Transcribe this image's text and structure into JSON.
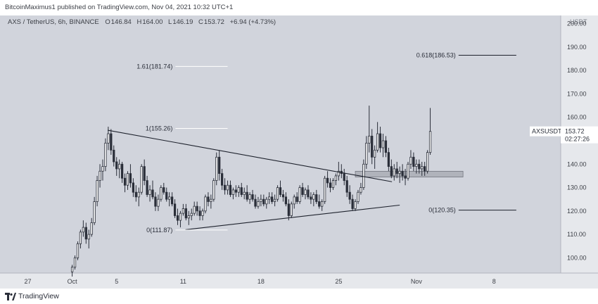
{
  "header": {
    "published_text": "BitcoinMaximus1 published on TradingView.com, Nov 04, 2021 10:32 UTC+1"
  },
  "footer": {
    "brand": "TradingView"
  },
  "colors": {
    "background": "#d1d4dc",
    "candle": "#2a2e39",
    "panel": "#e6e8ec",
    "text": "#3c3f46",
    "price_label_bg": "#ffffff"
  },
  "chart_data": {
    "type": "candlestick",
    "symbol": "AXS / TetherUS, 6h, BINANCE",
    "ohlc": {
      "o_label": "O",
      "o": "146.84",
      "h_label": "H",
      "h": "164.00",
      "l_label": "L",
      "l": "146.19",
      "c_label": "C",
      "c": "153.72",
      "change": "+6.94 (+4.73%)"
    },
    "y_axis": {
      "unit": "USDT",
      "ticks": [
        "200.00",
        "190.00",
        "180.00",
        "170.00",
        "160.00",
        "150.00",
        "140.00",
        "130.00",
        "120.00",
        "110.00",
        "100.00"
      ],
      "tick_values": [
        200,
        190,
        180,
        170,
        160,
        150,
        140,
        130,
        120,
        110,
        100
      ],
      "range": [
        93.5,
        203.5
      ]
    },
    "x_axis": {
      "ticks": [
        "27",
        "Oct",
        "5",
        "11",
        "18",
        "25",
        "Nov",
        "8"
      ],
      "tick_days": [
        -4,
        0,
        4,
        10,
        17,
        24,
        31,
        38
      ],
      "range": [
        -6.5,
        44
      ],
      "day_origin": "Oct"
    },
    "current_price": {
      "symbol": "AXSUSDT",
      "price": "153.72",
      "countdown": "02:27:26",
      "value": 153.72
    },
    "fib_levels": [
      {
        "label": "1.61(181.74)",
        "value": 181.74,
        "day_start": 9.3,
        "day_end": 14.0
      },
      {
        "label": "1(155.26)",
        "value": 155.26,
        "day_start": 9.3,
        "day_end": 14.0
      },
      {
        "label": "0(111.87)",
        "value": 111.87,
        "day_start": 9.3,
        "day_end": 14.0
      },
      {
        "label": "0.618(186.53)",
        "value": 186.53,
        "day_start": 34.8,
        "day_end": 40.0
      },
      {
        "label": "0(120.35)",
        "value": 120.35,
        "day_start": 34.8,
        "day_end": 40.0
      }
    ],
    "trendlines": [
      {
        "from": [
          3.2,
          154.5
        ],
        "to": [
          28.8,
          132.5
        ]
      },
      {
        "from": [
          10.2,
          112.0
        ],
        "to": [
          29.5,
          122.5
        ]
      }
    ],
    "support_zone": {
      "day_start": 25.5,
      "day_end": 35.2,
      "low": 134.5,
      "high": 137.0
    },
    "candles": [
      [
        0,
        94,
        97,
        92,
        96
      ],
      [
        0.25,
        96,
        101,
        95,
        100
      ],
      [
        0.5,
        100,
        107,
        99,
        106
      ],
      [
        0.75,
        106,
        112,
        104,
        111
      ],
      [
        1,
        111,
        116,
        109,
        113
      ],
      [
        1.25,
        113,
        115,
        106,
        108
      ],
      [
        1.5,
        108,
        112,
        104,
        110
      ],
      [
        1.75,
        110,
        117,
        109,
        115
      ],
      [
        2,
        115,
        126,
        114,
        124
      ],
      [
        2.25,
        124,
        135,
        122,
        133
      ],
      [
        2.5,
        133,
        140,
        130,
        137
      ],
      [
        2.75,
        137,
        142,
        133,
        139
      ],
      [
        3,
        139,
        151,
        137,
        149
      ],
      [
        3.25,
        149,
        156,
        146,
        153
      ],
      [
        3.5,
        153,
        155,
        144,
        146
      ],
      [
        3.75,
        146,
        148,
        139,
        141
      ],
      [
        4,
        141,
        143,
        135,
        138
      ],
      [
        4.25,
        138,
        142,
        134,
        140
      ],
      [
        4.5,
        140,
        141,
        132,
        134
      ],
      [
        4.75,
        134,
        136,
        128,
        131
      ],
      [
        5,
        131,
        137,
        129,
        136
      ],
      [
        5.25,
        136,
        140,
        130,
        132
      ],
      [
        5.5,
        132,
        134,
        126,
        128
      ],
      [
        5.75,
        128,
        131,
        124,
        126
      ],
      [
        6,
        126,
        130,
        122,
        128
      ],
      [
        6.25,
        128,
        140,
        127,
        139
      ],
      [
        6.5,
        139,
        142,
        131,
        133
      ],
      [
        6.75,
        133,
        135,
        126,
        127
      ],
      [
        7,
        127,
        131,
        124,
        129
      ],
      [
        7.25,
        129,
        133,
        125,
        126
      ],
      [
        7.5,
        126,
        128,
        120,
        122
      ],
      [
        7.75,
        122,
        127,
        120,
        125
      ],
      [
        8,
        125,
        131,
        124,
        130
      ],
      [
        8.25,
        130,
        132,
        127,
        128
      ],
      [
        8.5,
        128,
        130,
        124,
        125
      ],
      [
        8.75,
        125,
        128,
        122,
        126
      ],
      [
        9,
        126,
        128,
        122,
        123
      ],
      [
        9.25,
        123,
        125,
        117,
        118
      ],
      [
        9.5,
        118,
        121,
        114,
        116
      ],
      [
        9.75,
        116,
        120,
        113,
        119
      ],
      [
        10,
        119,
        123,
        118,
        121
      ],
      [
        10.25,
        121,
        123,
        116,
        117
      ],
      [
        10.5,
        117,
        120,
        114,
        118
      ],
      [
        10.75,
        118,
        121,
        116,
        119
      ],
      [
        11,
        119,
        124,
        118,
        122
      ],
      [
        11.25,
        122,
        124,
        118,
        120
      ],
      [
        11.5,
        120,
        122,
        116,
        118
      ],
      [
        11.75,
        118,
        121,
        116,
        120
      ],
      [
        12,
        120,
        127,
        119,
        126
      ],
      [
        12.25,
        126,
        128,
        122,
        124
      ],
      [
        12.5,
        124,
        127,
        121,
        125
      ],
      [
        12.75,
        125,
        134,
        124,
        133
      ],
      [
        13,
        133,
        145,
        131,
        143
      ],
      [
        13.25,
        143,
        146,
        133,
        136
      ],
      [
        13.5,
        136,
        138,
        129,
        131
      ],
      [
        13.75,
        131,
        134,
        127,
        129
      ],
      [
        14,
        129,
        133,
        127,
        131
      ],
      [
        14.25,
        131,
        133,
        126,
        127
      ],
      [
        14.5,
        127,
        130,
        125,
        129
      ],
      [
        14.75,
        129,
        131,
        126,
        128
      ],
      [
        15,
        128,
        131,
        126,
        130
      ],
      [
        15.25,
        130,
        132,
        126,
        127
      ],
      [
        15.5,
        127,
        130,
        125,
        128
      ],
      [
        15.75,
        128,
        131,
        124,
        125
      ],
      [
        16,
        125,
        128,
        123,
        127
      ],
      [
        16.25,
        127,
        129,
        124,
        125
      ],
      [
        16.5,
        125,
        127,
        121,
        122
      ],
      [
        16.75,
        122,
        126,
        121,
        124
      ],
      [
        17,
        124,
        127,
        122,
        125
      ],
      [
        17.25,
        125,
        127,
        122,
        123
      ],
      [
        17.5,
        123,
        126,
        121,
        125
      ],
      [
        17.75,
        125,
        128,
        123,
        126
      ],
      [
        18,
        126,
        128,
        123,
        124
      ],
      [
        18.25,
        124,
        127,
        122,
        125
      ],
      [
        18.5,
        125,
        131,
        124,
        130
      ],
      [
        18.75,
        130,
        133,
        126,
        127
      ],
      [
        19,
        127,
        129,
        124,
        126
      ],
      [
        19.25,
        126,
        128,
        122,
        123
      ],
      [
        19.5,
        123,
        125,
        116,
        118
      ],
      [
        19.75,
        118,
        124,
        117,
        123
      ],
      [
        20,
        123,
        127,
        121,
        126
      ],
      [
        20.25,
        126,
        128,
        123,
        124
      ],
      [
        20.5,
        124,
        131,
        123,
        130
      ],
      [
        20.75,
        130,
        132,
        126,
        127
      ],
      [
        21,
        127,
        130,
        125,
        129
      ],
      [
        21.25,
        129,
        131,
        125,
        126
      ],
      [
        21.5,
        126,
        128,
        123,
        125
      ],
      [
        21.75,
        125,
        128,
        122,
        127
      ],
      [
        22,
        127,
        129,
        123,
        124
      ],
      [
        22.25,
        124,
        127,
        121,
        122
      ],
      [
        22.5,
        122,
        125,
        120,
        124
      ],
      [
        22.75,
        124,
        135,
        123,
        134
      ],
      [
        23,
        134,
        137,
        130,
        132
      ],
      [
        23.25,
        132,
        134,
        128,
        130
      ],
      [
        23.5,
        130,
        134,
        129,
        133
      ],
      [
        23.75,
        133,
        136,
        131,
        135
      ],
      [
        24,
        135,
        141,
        133,
        137
      ],
      [
        24.25,
        137,
        140,
        134,
        136
      ],
      [
        24.5,
        136,
        138,
        131,
        133
      ],
      [
        24.75,
        133,
        135,
        126,
        128
      ],
      [
        25,
        128,
        131,
        123,
        125
      ],
      [
        25.25,
        125,
        127,
        120,
        121
      ],
      [
        25.5,
        121,
        125,
        120,
        124
      ],
      [
        25.75,
        124,
        129,
        123,
        128
      ],
      [
        26,
        128,
        132,
        127,
        130
      ],
      [
        26.25,
        130,
        142,
        129,
        140
      ],
      [
        26.5,
        140,
        152,
        138,
        149
      ],
      [
        26.75,
        149,
        165,
        145,
        152
      ],
      [
        27,
        152,
        155,
        140,
        143
      ],
      [
        27.25,
        143,
        148,
        138,
        146
      ],
      [
        27.5,
        146,
        158,
        145,
        153
      ],
      [
        27.75,
        153,
        156,
        145,
        147
      ],
      [
        28,
        147,
        153,
        143,
        150
      ],
      [
        28.25,
        150,
        152,
        143,
        145
      ],
      [
        28.5,
        145,
        147,
        137,
        139
      ],
      [
        28.75,
        139,
        142,
        134,
        135
      ],
      [
        29,
        135,
        140,
        133,
        138
      ],
      [
        29.25,
        138,
        141,
        134,
        136
      ],
      [
        29.5,
        136,
        139,
        132,
        137
      ],
      [
        29.75,
        137,
        140,
        133,
        135
      ],
      [
        30,
        135,
        138,
        131,
        134
      ],
      [
        30.25,
        134,
        141,
        133,
        140
      ],
      [
        30.5,
        140,
        146,
        138,
        143
      ],
      [
        30.75,
        143,
        145,
        137,
        139
      ],
      [
        31,
        139,
        142,
        136,
        140
      ],
      [
        31.25,
        140,
        142,
        136,
        138
      ],
      [
        31.5,
        138,
        141,
        135,
        139
      ],
      [
        31.75,
        139,
        141,
        135,
        137
      ],
      [
        32,
        137,
        146,
        136,
        145
      ],
      [
        32.25,
        145,
        164,
        144,
        154
      ]
    ]
  }
}
